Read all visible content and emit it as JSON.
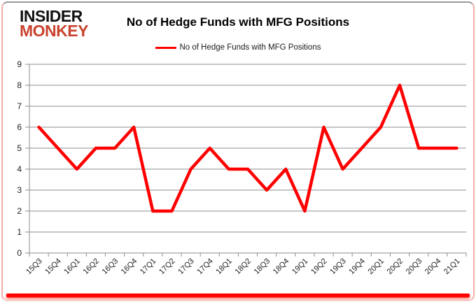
{
  "header": {
    "logo": {
      "line1": "INSIDER",
      "line2": "MONKEY"
    },
    "title": "No of Hedge Funds with MFG Positions",
    "legend": {
      "label": "No of Hedge Funds with MFG Positions"
    }
  },
  "chart_data": {
    "type": "line",
    "title": "No of Hedge Funds with MFG Positions",
    "categories": [
      "15Q3",
      "15Q4",
      "16Q1",
      "16Q2",
      "16Q3",
      "16Q4",
      "17Q1",
      "17Q2",
      "17Q3",
      "17Q4",
      "18Q1",
      "18Q2",
      "18Q3",
      "18Q4",
      "19Q1",
      "19Q2",
      "19Q3",
      "19Q4",
      "20Q1",
      "20Q2",
      "20Q3",
      "20Q4",
      "21Q1"
    ],
    "series": [
      {
        "name": "No of Hedge Funds with MFG Positions",
        "color": "#ff0000",
        "values": [
          6,
          5,
          4,
          5,
          5,
          6,
          2,
          2,
          4,
          5,
          4,
          4,
          3,
          4,
          2,
          6,
          4,
          5,
          6,
          8,
          5,
          5,
          5
        ]
      }
    ],
    "ylim": [
      0,
      9
    ],
    "yticks": [
      0,
      1,
      2,
      3,
      4,
      5,
      6,
      7,
      8,
      9
    ],
    "xlabel": "",
    "ylabel": "",
    "grid": true,
    "legend_position": "top",
    "x_label_rotation": -45
  },
  "colors": {
    "line_red": "#ff0000",
    "gridline": "#8c8c8c",
    "axis": "#8c8c8c",
    "tick_label": "#1f1f1f",
    "logo_black": "#111111",
    "logo_red": "#c8432f",
    "border_pink": "#f2aea9"
  }
}
